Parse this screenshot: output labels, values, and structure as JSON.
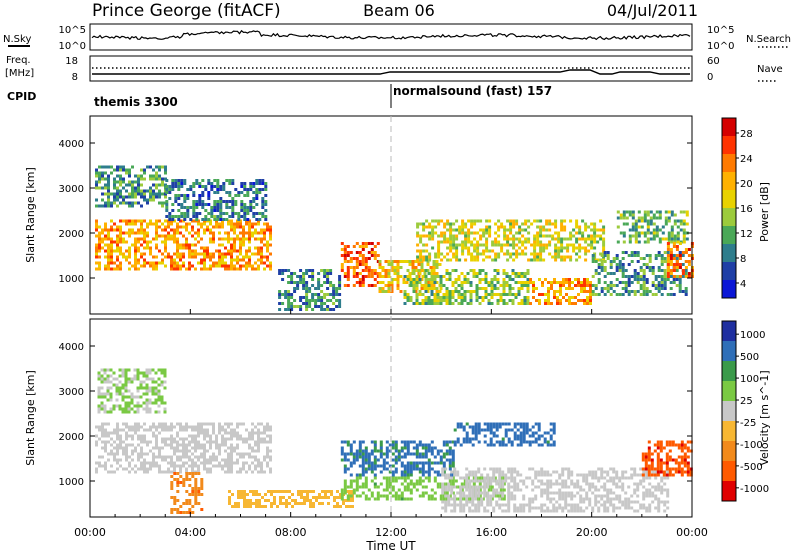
{
  "header": {
    "station": "Prince George (fitACF)",
    "beam": "Beam 06",
    "date": "04/Jul/2011"
  },
  "top_panels": {
    "nsky_label": "N.Sky",
    "nsky_ticks": [
      "10^5",
      "10^0"
    ],
    "nsearch_label": "N.Search",
    "nsearch_ticks": [
      "10^5",
      "10^0"
    ],
    "freq_label_1": "Freq.",
    "freq_label_2": "[MHz]",
    "freq_ticks": [
      "18",
      "8"
    ],
    "nave_label": "Nave",
    "nave_ticks": [
      "60",
      "0"
    ],
    "cpid_label": "CPID",
    "cpid_modes": [
      {
        "name": "themis 3300",
        "start_hour": 0
      },
      {
        "name": "normalsound (fast) 157",
        "start_hour": 12
      }
    ]
  },
  "time_axis": {
    "label": "Time UT",
    "ticks": [
      "00:00",
      "04:00",
      "08:00",
      "12:00",
      "16:00",
      "20:00",
      "00:00"
    ],
    "range_hours": [
      0,
      24
    ]
  },
  "chart_data": [
    {
      "type": "heatmap",
      "parameter": "power",
      "ylabel": "Slant Range [km]",
      "ylim": [
        200,
        4600
      ],
      "yticks": [
        1000,
        2000,
        3000,
        4000
      ],
      "colorbar": {
        "label": "Power [dB]",
        "ticks": [
          "28",
          "24",
          "20",
          "16",
          "12",
          "8",
          "4"
        ],
        "colors": [
          "#d40000",
          "#ff3300",
          "#ff7a00",
          "#ffb100",
          "#e8d200",
          "#9ccb3c",
          "#4aa857",
          "#2e7d8c",
          "#1f3fa6",
          "#0b17d6"
        ]
      },
      "bands": [
        {
          "t": [
            0.2,
            7.2
          ],
          "r": [
            1200,
            2300
          ],
          "v": 22
        },
        {
          "t": [
            0.2,
            3.0
          ],
          "r": [
            2600,
            3500
          ],
          "v": 10
        },
        {
          "t": [
            3.0,
            7.0
          ],
          "r": [
            2300,
            3200
          ],
          "v": 8
        },
        {
          "t": [
            7.5,
            10.0
          ],
          "r": [
            300,
            1200
          ],
          "v": 9
        },
        {
          "t": [
            10.0,
            11.5
          ],
          "r": [
            800,
            1800
          ],
          "v": 25
        },
        {
          "t": [
            11.5,
            14.0
          ],
          "r": [
            700,
            1400
          ],
          "v": 19
        },
        {
          "t": [
            12.5,
            17.5
          ],
          "r": [
            400,
            1200
          ],
          "v": 14
        },
        {
          "t": [
            13.0,
            20.5
          ],
          "r": [
            1400,
            2300
          ],
          "v": 17
        },
        {
          "t": [
            17.5,
            20.0
          ],
          "r": [
            400,
            1000
          ],
          "v": 22
        },
        {
          "t": [
            20.0,
            23.8
          ],
          "r": [
            600,
            1600
          ],
          "v": 10
        },
        {
          "t": [
            21.0,
            23.8
          ],
          "r": [
            1800,
            2500
          ],
          "v": 12
        },
        {
          "t": [
            23.0,
            24.0
          ],
          "r": [
            1000,
            1800
          ],
          "v": 24
        }
      ]
    },
    {
      "type": "heatmap",
      "parameter": "velocity",
      "ylabel": "Slant Range [km]",
      "ylim": [
        200,
        4600
      ],
      "yticks": [
        1000,
        2000,
        3000,
        4000
      ],
      "colorbar": {
        "label": "Velocity [m s^-1]",
        "ticks": [
          "1000",
          "500",
          "100",
          "25",
          "-25",
          "-100",
          "-500",
          "-1000"
        ],
        "colors": [
          "#1f2fa0",
          "#2f6fb8",
          "#3a9a4a",
          "#7ac943",
          "#c8c8c8",
          "#f7b733",
          "#f28a1b",
          "#ff5a00",
          "#e00000"
        ]
      },
      "bands": [
        {
          "t": [
            0.2,
            7.2
          ],
          "r": [
            1200,
            2300
          ],
          "v": 0
        },
        {
          "t": [
            0.3,
            3.0
          ],
          "r": [
            2500,
            3500
          ],
          "v": 30
        },
        {
          "t": [
            3.2,
            4.5
          ],
          "r": [
            300,
            1200
          ],
          "v": -400
        },
        {
          "t": [
            5.5,
            10.5
          ],
          "r": [
            400,
            800
          ],
          "v": -60
        },
        {
          "t": [
            10.0,
            14.5
          ],
          "r": [
            1100,
            1900
          ],
          "v": 600
        },
        {
          "t": [
            14.5,
            18.5
          ],
          "r": [
            1800,
            2300
          ],
          "v": 700
        },
        {
          "t": [
            10.0,
            16.5
          ],
          "r": [
            600,
            1100
          ],
          "v": 70
        },
        {
          "t": [
            14.0,
            23.0
          ],
          "r": [
            300,
            1300
          ],
          "v": 0
        },
        {
          "t": [
            22.0,
            24.0
          ],
          "r": [
            1100,
            1900
          ],
          "v": -800
        }
      ]
    }
  ]
}
